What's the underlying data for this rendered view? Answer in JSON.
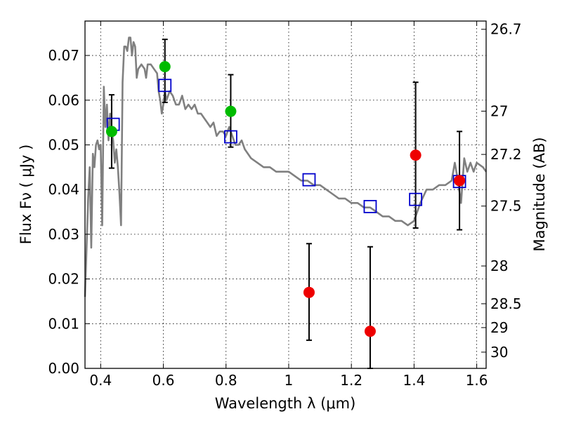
{
  "chart_data": {
    "type": "scatter",
    "xlabel": "Wavelength  λ (μm)",
    "ylabel": "Flux  Fν  ( μJy )",
    "ylabel_right": "Magnitude (AB)",
    "xlim": [
      0.35,
      1.63
    ],
    "ylim": [
      0.0,
      0.0777
    ],
    "grid": true,
    "x_ticks": [
      0.4,
      0.6,
      0.8,
      1.0,
      1.2,
      1.4,
      1.6
    ],
    "x_tick_labels": [
      "0.4",
      "0.6",
      "0.8",
      "1",
      "1.2",
      "1.4",
      "1.6"
    ],
    "y_ticks": [
      0.0,
      0.01,
      0.02,
      0.03,
      0.04,
      0.05,
      0.06,
      0.07
    ],
    "y_tick_labels": [
      "0.00",
      "0.01",
      "0.02",
      "0.03",
      "0.04",
      "0.05",
      "0.06",
      "0.07"
    ],
    "mag_ticks": [
      26.7,
      27,
      27.2,
      27.5,
      28,
      28.5,
      29,
      30
    ],
    "mag_tick_labels": [
      "26.7",
      "27",
      "27.2",
      "27.5",
      "28",
      "28.5",
      "29",
      "30"
    ],
    "colors": {
      "model": "#808080",
      "green": "#00bb00",
      "red": "#ee0000",
      "square": "#0000cc",
      "errorbar": "#000000"
    },
    "series": [
      {
        "name": "model spectrum",
        "kind": "line",
        "x": [
          0.35,
          0.36,
          0.365,
          0.37,
          0.375,
          0.38,
          0.385,
          0.39,
          0.395,
          0.4,
          0.405,
          0.41,
          0.415,
          0.42,
          0.425,
          0.43,
          0.435,
          0.44,
          0.445,
          0.45,
          0.455,
          0.46,
          0.465,
          0.47,
          0.475,
          0.48,
          0.485,
          0.49,
          0.495,
          0.5,
          0.505,
          0.51,
          0.515,
          0.52,
          0.53,
          0.54,
          0.545,
          0.55,
          0.56,
          0.57,
          0.58,
          0.585,
          0.59,
          0.595,
          0.6,
          0.605,
          0.61,
          0.615,
          0.62,
          0.63,
          0.64,
          0.65,
          0.66,
          0.67,
          0.68,
          0.69,
          0.7,
          0.71,
          0.72,
          0.73,
          0.74,
          0.75,
          0.76,
          0.77,
          0.78,
          0.79,
          0.8,
          0.81,
          0.82,
          0.83,
          0.84,
          0.85,
          0.86,
          0.87,
          0.88,
          0.9,
          0.92,
          0.94,
          0.96,
          0.98,
          1.0,
          1.02,
          1.04,
          1.06,
          1.08,
          1.1,
          1.12,
          1.14,
          1.16,
          1.18,
          1.2,
          1.22,
          1.24,
          1.26,
          1.28,
          1.3,
          1.32,
          1.34,
          1.36,
          1.38,
          1.4,
          1.42,
          1.44,
          1.46,
          1.48,
          1.5,
          1.52,
          1.53,
          1.54,
          1.55,
          1.56,
          1.57,
          1.58,
          1.59,
          1.6,
          1.62,
          1.63
        ],
        "y": [
          0.016,
          0.038,
          0.045,
          0.027,
          0.048,
          0.045,
          0.05,
          0.051,
          0.049,
          0.05,
          0.032,
          0.063,
          0.054,
          0.059,
          0.051,
          0.057,
          0.053,
          0.051,
          0.046,
          0.049,
          0.045,
          0.039,
          0.032,
          0.064,
          0.072,
          0.072,
          0.071,
          0.074,
          0.074,
          0.07,
          0.073,
          0.072,
          0.065,
          0.067,
          0.068,
          0.067,
          0.065,
          0.068,
          0.068,
          0.067,
          0.066,
          0.062,
          0.06,
          0.057,
          0.059,
          0.062,
          0.06,
          0.061,
          0.062,
          0.061,
          0.059,
          0.059,
          0.061,
          0.058,
          0.059,
          0.058,
          0.059,
          0.057,
          0.057,
          0.056,
          0.055,
          0.054,
          0.055,
          0.052,
          0.053,
          0.053,
          0.052,
          0.054,
          0.052,
          0.05,
          0.05,
          0.051,
          0.049,
          0.048,
          0.047,
          0.046,
          0.045,
          0.045,
          0.044,
          0.044,
          0.044,
          0.043,
          0.042,
          0.042,
          0.041,
          0.041,
          0.04,
          0.039,
          0.038,
          0.038,
          0.037,
          0.037,
          0.036,
          0.036,
          0.035,
          0.034,
          0.034,
          0.033,
          0.033,
          0.032,
          0.033,
          0.037,
          0.04,
          0.04,
          0.041,
          0.041,
          0.042,
          0.046,
          0.042,
          0.037,
          0.047,
          0.044,
          0.046,
          0.044,
          0.046,
          0.045,
          0.044
        ]
      },
      {
        "name": "observed (green)",
        "kind": "points",
        "x": [
          0.435,
          0.605,
          0.815
        ],
        "y": [
          0.053,
          0.0675,
          0.0575
        ],
        "yerr": [
          null,
          null,
          null
        ]
      },
      {
        "name": "observed (red)",
        "kind": "points",
        "x": [
          1.065,
          1.26,
          1.405,
          1.545
        ],
        "y": [
          0.017,
          0.0083,
          0.0477,
          0.042
        ],
        "yerr": [
          null,
          null,
          null,
          null
        ]
      },
      {
        "name": "synthetic photometry (squares)",
        "kind": "points",
        "x": [
          0.44,
          0.605,
          0.815,
          1.065,
          1.26,
          1.405,
          1.545
        ],
        "y": [
          0.0546,
          0.0633,
          0.0518,
          0.0422,
          0.0362,
          0.0378,
          0.0418
        ]
      },
      {
        "name": "error bars",
        "kind": "errorbar",
        "x": [
          0.435,
          0.605,
          0.815,
          1.065,
          1.26,
          1.405,
          1.545
        ],
        "y_low": [
          0.0448,
          0.0595,
          0.0495,
          0.0063,
          0.0,
          0.0314,
          0.031
        ],
        "y_high": [
          0.0612,
          0.0736,
          0.0657,
          0.0279,
          0.0272,
          0.064,
          0.053
        ]
      }
    ]
  }
}
